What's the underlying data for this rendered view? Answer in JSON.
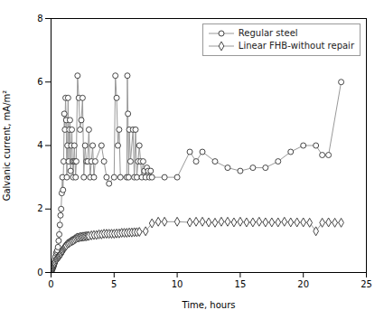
{
  "chart_data": {
    "type": "line",
    "xlabel": "Time, hours",
    "ylabel": "Galvanic current, mA/m²",
    "xlim": [
      0,
      25
    ],
    "ylim": [
      0,
      8
    ],
    "xticks": [
      0,
      5,
      10,
      15,
      20,
      25
    ],
    "yticks": [
      0,
      2,
      4,
      6,
      8
    ],
    "grid": false,
    "legend": "upper right",
    "series": [
      {
        "name": "Regular steel",
        "color": "#999999",
        "marker": "circle",
        "x": [
          0.0,
          0.05,
          0.1,
          0.15,
          0.2,
          0.25,
          0.3,
          0.35,
          0.4,
          0.45,
          0.5,
          0.55,
          0.6,
          0.65,
          0.7,
          0.75,
          0.8,
          0.85,
          0.9,
          0.95,
          1.0,
          1.05,
          1.1,
          1.15,
          1.2,
          1.25,
          1.3,
          1.35,
          1.4,
          1.45,
          1.5,
          1.55,
          1.6,
          1.65,
          1.7,
          1.75,
          1.8,
          1.85,
          1.9,
          1.95,
          2.0,
          2.1,
          2.2,
          2.3,
          2.4,
          2.5,
          2.6,
          2.7,
          2.8,
          2.9,
          3.0,
          3.1,
          3.2,
          3.3,
          3.4,
          3.5,
          4.0,
          4.2,
          4.4,
          4.6,
          5.0,
          5.1,
          5.2,
          5.3,
          5.4,
          5.5,
          6.0,
          6.05,
          6.1,
          6.15,
          6.2,
          6.3,
          6.5,
          6.6,
          6.7,
          6.8,
          6.9,
          7.0,
          7.1,
          7.2,
          7.3,
          7.4,
          7.5,
          7.6,
          7.7,
          7.8,
          7.9,
          8.0,
          9.0,
          10.0,
          11.0,
          11.5,
          12.0,
          13.0,
          14.0,
          15.0,
          16.0,
          17.0,
          18.0,
          19.0,
          20.0,
          21.0,
          21.5,
          22.0,
          23.0
        ],
        "values": [
          0.0,
          0.05,
          0.1,
          0.15,
          0.2,
          0.3,
          0.4,
          0.5,
          0.6,
          0.65,
          0.7,
          0.8,
          1.0,
          1.2,
          1.5,
          1.8,
          2.0,
          2.5,
          3.0,
          2.6,
          3.5,
          5.0,
          4.5,
          5.5,
          4.8,
          3.0,
          4.0,
          5.5,
          3.5,
          4.5,
          4.8,
          3.2,
          4.0,
          4.5,
          3.5,
          3.0,
          3.5,
          4.0,
          3.5,
          3.0,
          3.5,
          6.2,
          5.5,
          4.5,
          4.8,
          5.5,
          3.0,
          4.0,
          3.5,
          3.5,
          4.5,
          3.0,
          3.5,
          4.0,
          3.0,
          3.5,
          4.0,
          3.5,
          3.0,
          2.8,
          3.0,
          6.2,
          5.5,
          4.0,
          4.5,
          3.0,
          3.0,
          6.2,
          5.0,
          3.0,
          4.5,
          3.5,
          4.5,
          3.0,
          4.5,
          3.0,
          3.5,
          4.0,
          3.5,
          3.0,
          3.5,
          3.2,
          3.0,
          3.3,
          3.2,
          3.0,
          3.2,
          3.0,
          3.0,
          3.0,
          3.8,
          3.5,
          3.8,
          3.5,
          3.3,
          3.2,
          3.3,
          3.3,
          3.5,
          3.8,
          4.0,
          4.0,
          3.7,
          3.7,
          6.0
        ]
      },
      {
        "name": "Linear FHB-without repair",
        "color": "#999999",
        "marker": "diamond",
        "x": [
          0.0,
          0.02,
          0.05,
          0.08,
          0.1,
          0.13,
          0.15,
          0.18,
          0.2,
          0.23,
          0.25,
          0.28,
          0.3,
          0.35,
          0.4,
          0.45,
          0.5,
          0.55,
          0.6,
          0.65,
          0.7,
          0.75,
          0.8,
          0.85,
          0.9,
          0.95,
          1.0,
          1.05,
          1.1,
          1.15,
          1.2,
          1.3,
          1.4,
          1.5,
          1.6,
          1.7,
          1.8,
          1.9,
          2.0,
          2.1,
          2.2,
          2.3,
          2.4,
          2.5,
          2.6,
          2.7,
          2.8,
          2.9,
          3.0,
          3.2,
          3.4,
          3.6,
          3.8,
          4.0,
          4.2,
          4.4,
          4.6,
          4.8,
          5.0,
          5.2,
          5.4,
          5.6,
          5.8,
          6.0,
          6.2,
          6.4,
          6.6,
          6.8,
          7.0,
          7.5,
          8.0,
          8.5,
          9.0,
          10.0,
          11.0,
          11.5,
          12.0,
          12.5,
          13.0,
          13.5,
          14.0,
          14.5,
          15.0,
          15.5,
          16.0,
          16.5,
          17.0,
          17.5,
          18.0,
          18.5,
          19.0,
          19.5,
          20.0,
          20.5,
          21.0,
          21.5,
          22.0,
          22.5,
          23.0
        ],
        "values": [
          0.0,
          0.02,
          0.05,
          0.08,
          0.1,
          0.12,
          0.15,
          0.18,
          0.2,
          0.23,
          0.25,
          0.28,
          0.3,
          0.35,
          0.4,
          0.42,
          0.45,
          0.48,
          0.5,
          0.52,
          0.55,
          0.58,
          0.6,
          0.65,
          0.68,
          0.7,
          0.75,
          0.78,
          0.8,
          0.82,
          0.85,
          0.9,
          0.92,
          0.95,
          0.98,
          1.0,
          1.02,
          1.05,
          1.08,
          1.1,
          1.1,
          1.12,
          1.12,
          1.13,
          1.13,
          1.14,
          1.14,
          1.15,
          1.15,
          1.17,
          1.18,
          1.18,
          1.2,
          1.2,
          1.22,
          1.22,
          1.22,
          1.22,
          1.22,
          1.23,
          1.23,
          1.25,
          1.25,
          1.25,
          1.26,
          1.26,
          1.27,
          1.27,
          1.28,
          1.3,
          1.55,
          1.6,
          1.6,
          1.6,
          1.58,
          1.6,
          1.6,
          1.58,
          1.57,
          1.6,
          1.6,
          1.58,
          1.6,
          1.58,
          1.58,
          1.6,
          1.58,
          1.58,
          1.58,
          1.6,
          1.58,
          1.58,
          1.58,
          1.57,
          1.3,
          1.57,
          1.58,
          1.57,
          1.57
        ]
      }
    ]
  }
}
